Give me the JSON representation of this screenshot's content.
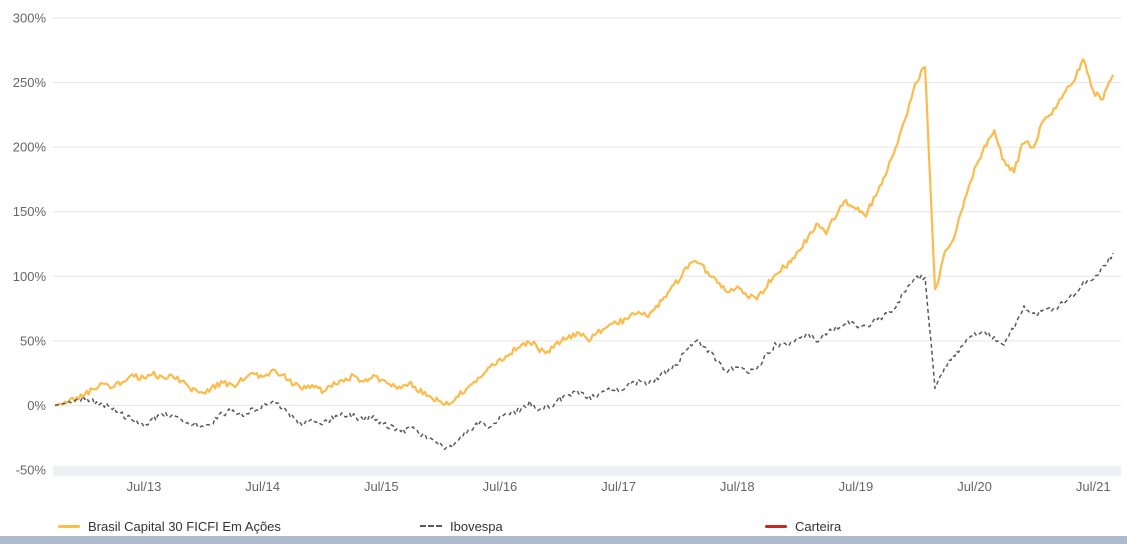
{
  "chart_data": {
    "type": "line",
    "title": "",
    "xlabel": "",
    "ylabel": "",
    "y_unit": "%",
    "ylim": [
      -50,
      300
    ],
    "grid": true,
    "grid_color": "#e6e6e6",
    "axis_band_color": "#eef0f3",
    "tick_color": "#666666",
    "legend_position": "bottom",
    "frequency": "monthly",
    "n_points": 108,
    "x_ticks": [
      "Jul/13",
      "Jul/14",
      "Jul/15",
      "Jul/16",
      "Jul/17",
      "Jul/18",
      "Jul/19",
      "Jul/20",
      "Jul/21"
    ],
    "x_tick_indices": [
      9,
      21,
      33,
      45,
      57,
      69,
      81,
      93,
      105
    ],
    "y_ticks": [
      "300%",
      "250%",
      "200%",
      "150%",
      "100%",
      "50%",
      "0%",
      "-50%"
    ],
    "series": [
      {
        "name": "Brasil Capital 30 FICFI Em Ações",
        "color": "#fbbc4c",
        "dash": "solid",
        "values": [
          0,
          2,
          5,
          8,
          13,
          17,
          14,
          20,
          23,
          21,
          24,
          20,
          23,
          17,
          12,
          10,
          14,
          18,
          15,
          20,
          24,
          22,
          27,
          24,
          17,
          13,
          16,
          12,
          16,
          20,
          22,
          18,
          22,
          20,
          16,
          13,
          16,
          11,
          7,
          2,
          1,
          9,
          16,
          23,
          29,
          35,
          41,
          45,
          50,
          43,
          42,
          49,
          53,
          56,
          50,
          57,
          62,
          64,
          68,
          74,
          70,
          78,
          86,
          97,
          108,
          112,
          103,
          96,
          88,
          93,
          85,
          82,
          93,
          104,
          108,
          118,
          128,
          140,
          134,
          148,
          158,
          152,
          148,
          163,
          180,
          200,
          222,
          250,
          262,
          88,
          118,
          133,
          160,
          183,
          200,
          212,
          188,
          182,
          205,
          200,
          222,
          228,
          243,
          252,
          268,
          242,
          238,
          256
        ]
      },
      {
        "name": "Ibovespa",
        "color": "#5a5a5a",
        "dash": "dashed",
        "values": [
          0,
          2,
          4,
          6,
          3,
          0,
          -3,
          -8,
          -12,
          -15,
          -10,
          -7,
          -9,
          -12,
          -14,
          -16,
          -12,
          -6,
          -4,
          -8,
          -3,
          -1,
          3,
          -2,
          -10,
          -14,
          -11,
          -15,
          -10,
          -6,
          -8,
          -11,
          -9,
          -13,
          -17,
          -20,
          -18,
          -22,
          -26,
          -31,
          -33,
          -25,
          -18,
          -14,
          -16,
          -10,
          -6,
          -4,
          2,
          -3,
          -1,
          5,
          8,
          10,
          6,
          9,
          13,
          11,
          15,
          19,
          16,
          22,
          27,
          33,
          45,
          50,
          42,
          35,
          26,
          31,
          25,
          28,
          40,
          48,
          46,
          52,
          55,
          50,
          55,
          60,
          65,
          63,
          60,
          66,
          70,
          77,
          88,
          98,
          100,
          14,
          30,
          38,
          48,
          55,
          58,
          52,
          48,
          60,
          75,
          70,
          73,
          75,
          80,
          86,
          95,
          98,
          106,
          118
        ]
      },
      {
        "name": "Carteira",
        "color": "#c62828",
        "dash": "solid",
        "values": []
      }
    ]
  },
  "footer": {
    "strip_color": "#aebacd"
  }
}
